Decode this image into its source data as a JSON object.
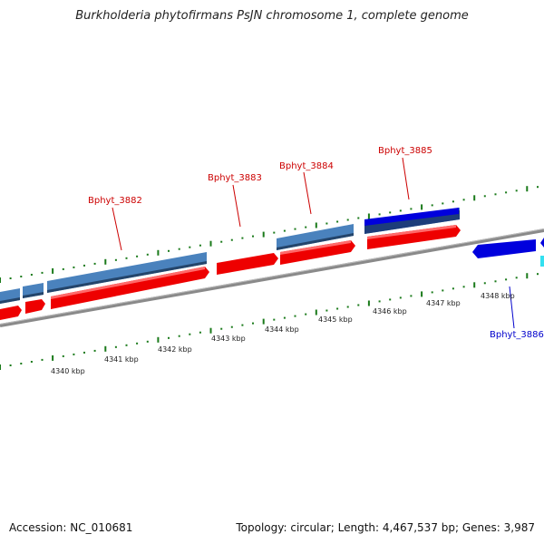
{
  "title": "Burkholderia phytofirmans PsJN chromosome 1, complete genome",
  "footer": {
    "accession": "Accession: NC_010681",
    "summary": "Topology: circular; Length: 4,467,537 bp; Genes: 3,987"
  },
  "colors": {
    "forward_cds": "#ee0000",
    "reverse_cds": "#0000dd",
    "gene_steel": "#4a82bd",
    "backbone": "#8a8a8a",
    "ticks": "#1a7a1a",
    "label_forward": "#cc0000",
    "label_reverse": "#0000cc"
  },
  "kbp_ticks": [
    "4340 kbp",
    "4341 kbp",
    "4342 kbp",
    "4343 kbp",
    "4344 kbp",
    "4345 kbp",
    "4346 kbp",
    "4347 kbp",
    "4348 kbp"
  ],
  "gene_labels": [
    {
      "name": "Bphyt_3882",
      "strand": "forward"
    },
    {
      "name": "Bphyt_3883",
      "strand": "forward"
    },
    {
      "name": "Bphyt_3884",
      "strand": "forward"
    },
    {
      "name": "Bphyt_3885",
      "strand": "forward"
    },
    {
      "name": "Bphyt_3886",
      "strand": "reverse"
    }
  ]
}
